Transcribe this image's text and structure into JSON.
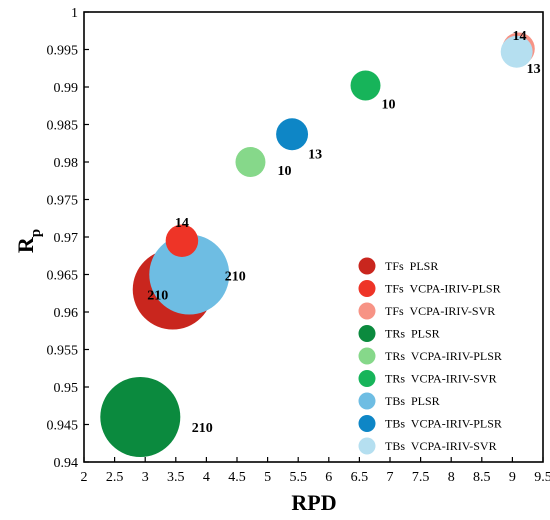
{
  "chart_data": {
    "type": "scatter",
    "variant": "bubble",
    "xlabel": "RPD",
    "ylabel_main": "R",
    "ylabel_sub": "p",
    "xlim": [
      2,
      9.5
    ],
    "ylim": [
      0.94,
      1
    ],
    "x_ticks": [
      "2",
      "2.5",
      "3",
      "3.5",
      "4",
      "4.5",
      "5",
      "5.5",
      "6",
      "6.5",
      "7",
      "7.5",
      "8",
      "8.5",
      "9",
      "9.5"
    ],
    "y_ticks": [
      "0.94",
      "0.945",
      "0.95",
      "0.955",
      "0.96",
      "0.965",
      "0.97",
      "0.975",
      "0.98",
      "0.985",
      "0.99",
      "0.995",
      "1"
    ],
    "grid": false,
    "legend_position": "bottom-right",
    "series": [
      {
        "name": "TFs  PLSR",
        "color": "#c9261e",
        "x": 3.45,
        "y": 0.963,
        "size": 210,
        "label": "210"
      },
      {
        "name": "TFs  VCPA-IRIV-PLSR",
        "color": "#ee3427",
        "x": 3.6,
        "y": 0.9695,
        "size": 14,
        "label": "14"
      },
      {
        "name": "TFs  VCPA-IRIV-SVR",
        "color": "#f79385",
        "x": 9.1,
        "y": 0.9951,
        "size": 14,
        "label": "14"
      },
      {
        "name": "TRs  PLSR",
        "color": "#0b8a3e",
        "x": 2.92,
        "y": 0.946,
        "size": 210,
        "label": "210"
      },
      {
        "name": "TRs  VCPA-IRIV-PLSR",
        "color": "#86d88a",
        "x": 4.72,
        "y": 0.98,
        "size": 10,
        "label": "10"
      },
      {
        "name": "TRs  VCPA-IRIV-SVR",
        "color": "#17b45a",
        "x": 6.6,
        "y": 0.9902,
        "size": 10,
        "label": "10"
      },
      {
        "name": "TBs  PLSR",
        "color": "#6ebde3",
        "x": 3.72,
        "y": 0.965,
        "size": 210,
        "label": "210"
      },
      {
        "name": "TBs  VCPA-IRIV-PLSR",
        "color": "#0e86c6",
        "x": 5.4,
        "y": 0.9837,
        "size": 13,
        "label": "13"
      },
      {
        "name": "TBs  VCPA-IRIV-SVR",
        "color": "#b5dff0",
        "x": 9.07,
        "y": 0.9947,
        "size": 13,
        "label": "13"
      }
    ]
  }
}
